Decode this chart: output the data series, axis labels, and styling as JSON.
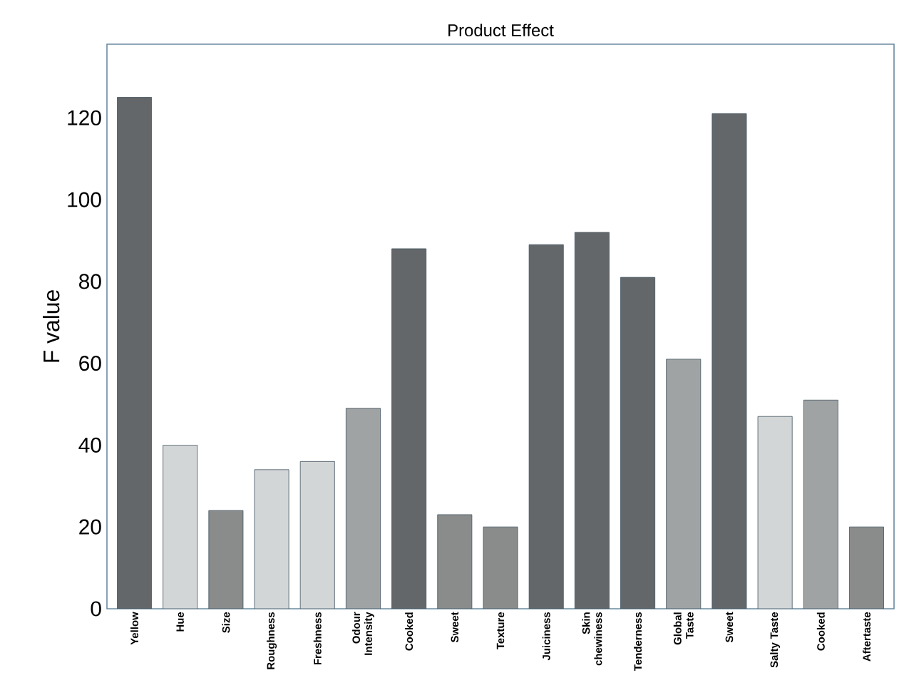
{
  "chart_data": {
    "type": "bar",
    "title": "Product Effect",
    "ylabel": "F value",
    "categories": [
      "Yellow",
      "Hue",
      "Size",
      "Roughness",
      "Freshness",
      "Odour Intensity",
      "Cooked",
      "Sweet",
      "Texture",
      "Juiciness",
      "Skin chewiness",
      "Tenderness",
      "Global Taste",
      "Sweet",
      "Salty Taste",
      "Cooked",
      "Aftertaste"
    ],
    "values": [
      125,
      40,
      24,
      34,
      36,
      49,
      88,
      23,
      20,
      89,
      92,
      81,
      61,
      121,
      47,
      51,
      20
    ],
    "colors": [
      "#646769",
      "#d3d6d6",
      "#8a8c8c",
      "#d3d6d6",
      "#d3d6d6",
      "#a0a3a3",
      "#646769",
      "#8a8c8c",
      "#8a8c8c",
      "#646769",
      "#646769",
      "#646769",
      "#a0a3a3",
      "#646769",
      "#d3d6d6",
      "#a0a3a3",
      "#8a8c8c"
    ],
    "ylim": [
      0,
      138
    ],
    "yticks": [
      0,
      20,
      40,
      60,
      80,
      100,
      120
    ]
  }
}
